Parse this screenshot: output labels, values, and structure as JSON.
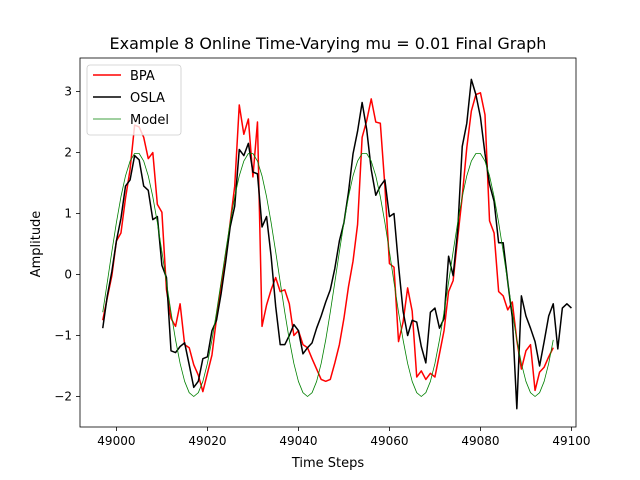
{
  "chart_data": {
    "type": "line",
    "title": "Example 8 Online Time-Varying mu = 0.01 Final Graph",
    "xlabel": "Time Steps",
    "ylabel": "Amplitude",
    "xlim": [
      48992,
      49101
    ],
    "ylim": [
      -2.5,
      3.55
    ],
    "xticks": [
      49000,
      49020,
      49040,
      49060,
      49080,
      49100
    ],
    "yticks": [
      -2,
      -1,
      0,
      1,
      2,
      3
    ],
    "grid": false,
    "legend": "top-left",
    "series": [
      {
        "name": "BPA",
        "color": "#ff0000",
        "line_width": 1.5,
        "x_start": 48997,
        "values": [
          -0.75,
          -0.38,
          -0.02,
          0.55,
          0.68,
          1.25,
          1.72,
          2.45,
          2.42,
          2.25,
          1.9,
          2.0,
          1.15,
          1.02,
          -0.25,
          -0.72,
          -0.85,
          -0.48,
          -1.15,
          -1.2,
          -1.48,
          -1.65,
          -1.92,
          -1.62,
          -1.32,
          -0.72,
          -0.18,
          0.25,
          0.85,
          1.45,
          2.78,
          2.3,
          2.55,
          1.6,
          2.5,
          -0.85,
          -0.5,
          -0.25,
          -0.05,
          -0.28,
          -0.25,
          -0.48,
          -1.0,
          -0.92,
          -1.15,
          -1.2,
          -1.38,
          -1.55,
          -1.72,
          -1.75,
          -1.72,
          -1.45,
          -1.15,
          -0.72,
          -0.2,
          0.22,
          0.82,
          2.25,
          2.52,
          2.88,
          2.5,
          2.48,
          1.45,
          0.18,
          0.12,
          -1.1,
          -0.78,
          -0.22,
          -0.6,
          -1.68,
          -1.58,
          -1.72,
          -1.62,
          -1.68,
          -1.3,
          -0.92,
          -0.28,
          -0.1,
          0.6,
          1.28,
          2.08,
          2.68,
          2.95,
          2.98,
          2.62,
          0.88,
          0.68,
          -0.28,
          -0.35,
          -0.58,
          -0.45,
          -1.08,
          -1.55,
          -1.25,
          -1.15,
          -1.9,
          -1.6,
          -1.52,
          -1.35,
          -1.2
        ]
      },
      {
        "name": "OSLA",
        "color": "#000000",
        "line_width": 1.5,
        "x_start": 48997,
        "values": [
          -0.88,
          -0.35,
          0.05,
          0.55,
          0.92,
          1.45,
          1.55,
          1.95,
          1.88,
          1.45,
          1.38,
          0.9,
          0.95,
          0.15,
          -0.05,
          -1.25,
          -1.28,
          -1.18,
          -1.12,
          -1.48,
          -1.85,
          -1.75,
          -1.38,
          -1.35,
          -0.92,
          -0.75,
          -0.32,
          0.2,
          0.78,
          1.12,
          2.05,
          1.95,
          2.15,
          1.68,
          1.65,
          0.78,
          0.95,
          0.3,
          -0.52,
          -1.15,
          -1.15,
          -1.0,
          -0.82,
          -0.92,
          -1.3,
          -1.2,
          -1.12,
          -0.88,
          -0.68,
          -0.45,
          -0.25,
          0.1,
          0.55,
          0.85,
          1.35,
          1.98,
          2.35,
          2.82,
          2.38,
          1.72,
          1.3,
          1.45,
          1.55,
          0.95,
          1.0,
          0.15,
          -0.6,
          -1.0,
          -0.75,
          -0.78,
          -1.18,
          -1.45,
          -0.62,
          -0.55,
          -0.88,
          -0.72,
          0.3,
          -0.02,
          0.72,
          2.1,
          2.48,
          3.2,
          2.95,
          2.58,
          1.98,
          1.48,
          1.2,
          0.52,
          0.52,
          -0.12,
          -0.7,
          -2.2,
          -0.35,
          -0.68,
          -0.88,
          -1.1,
          -1.5,
          -1.1,
          -0.68,
          -0.48,
          -1.22,
          -0.55,
          -0.48,
          -0.55
        ]
      },
      {
        "name": "Model",
        "color": "#008000",
        "line_width": 0.8,
        "x_start": 48997,
        "x_step": 1,
        "model": {
          "amplitude": 2.0,
          "period": 25,
          "peak_x": 49004.5
        },
        "count": 100
      }
    ]
  }
}
